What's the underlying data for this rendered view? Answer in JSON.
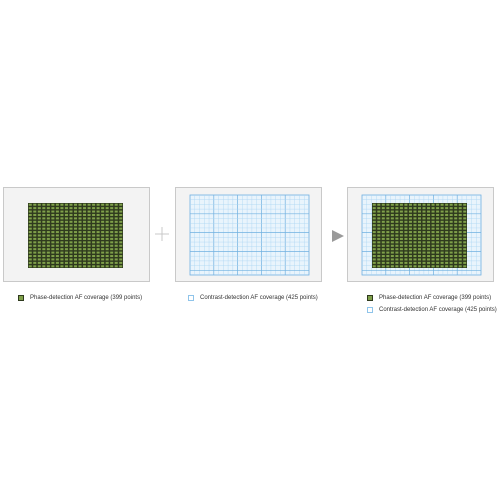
{
  "legends": {
    "phase": "Phase-detection AF coverage (399 points)",
    "contrast": "Contrast-detection  AF coverage (425 points)",
    "combined_phase": "Phase-detection AF coverage (399 points)",
    "combined_contrast": "Contrast-detection  AF coverage (425 points)"
  },
  "colors": {
    "panel_bg": "#f3f3f3",
    "panel_border": "#c9c9c9",
    "phase_fill": "#7fa04a",
    "phase_border": "#2f3a1e",
    "contrast_fine": "#a9d4f3",
    "contrast_major": "#6fb0e0",
    "contrast_bg": "#e9f4fc",
    "connector": "#c8c8c8",
    "arrow": "#9a9a9a"
  },
  "icons": {
    "plus": "plus-icon",
    "arrow": "arrow-right-icon"
  }
}
